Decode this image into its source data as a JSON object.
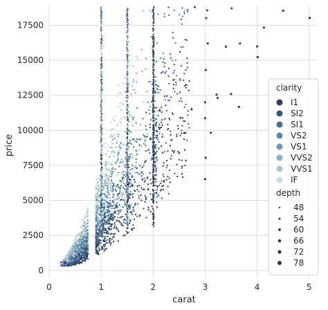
{
  "chart_data": {
    "type": "scatter",
    "title": "",
    "xlabel": "carat",
    "ylabel": "price",
    "xlim": [
      0,
      5.15
    ],
    "ylim": [
      -500,
      18900
    ],
    "x_ticks": [
      0,
      1,
      2,
      3,
      4,
      5
    ],
    "y_ticks": [
      0,
      2500,
      5000,
      7500,
      10000,
      12500,
      15000,
      17500
    ],
    "grid": true,
    "legend_placement": "right",
    "hue": {
      "title": "clarity",
      "categories": [
        "I1",
        "SI2",
        "SI1",
        "VS2",
        "VS1",
        "VVS2",
        "VVS1",
        "IF"
      ],
      "colors": [
        "#2c3d5e",
        "#3a557c",
        "#4a6b92",
        "#5a82a4",
        "#6e9ab4",
        "#88b1c2",
        "#a7c6d0",
        "#c7dde2"
      ]
    },
    "size": {
      "title": "depth",
      "values": [
        48,
        54,
        60,
        66,
        72,
        78
      ]
    },
    "outliers": [
      {
        "x": 4.5,
        "y": 18531,
        "clarity": "I1"
      },
      {
        "x": 5.01,
        "y": 18018,
        "clarity": "I1"
      },
      {
        "x": 4.13,
        "y": 17329,
        "clarity": "I1"
      },
      {
        "x": 4.01,
        "y": 15223,
        "clarity": "I1"
      },
      {
        "x": 4.01,
        "y": 15223,
        "clarity": "I1"
      },
      {
        "x": 4.0,
        "y": 15984,
        "clarity": "I1"
      },
      {
        "x": 3.67,
        "y": 16193,
        "clarity": "I1"
      },
      {
        "x": 3.51,
        "y": 18701,
        "clarity": "SI2"
      },
      {
        "x": 3.4,
        "y": 15964,
        "clarity": "I1"
      },
      {
        "x": 3.65,
        "y": 11668,
        "clarity": "I1"
      },
      {
        "x": 3.5,
        "y": 12587,
        "clarity": "I1"
      },
      {
        "x": 3.22,
        "y": 12545,
        "clarity": "I1"
      },
      {
        "x": 3.24,
        "y": 12300,
        "clarity": "I1"
      },
      {
        "x": 3.11,
        "y": 9823,
        "clarity": "I1"
      },
      {
        "x": 3.01,
        "y": 8040,
        "clarity": "I1"
      },
      {
        "x": 3.0,
        "y": 6512,
        "clarity": "I1"
      },
      {
        "x": 3.0,
        "y": 10863,
        "clarity": "I1"
      },
      {
        "x": 3.02,
        "y": 18000,
        "clarity": "SI2"
      },
      {
        "x": 3.04,
        "y": 18559,
        "clarity": "SI2"
      },
      {
        "x": 3.05,
        "y": 16200,
        "clarity": "I1"
      },
      {
        "x": 3.01,
        "y": 14300,
        "clarity": "I1"
      },
      {
        "x": 3.0,
        "y": 12000,
        "clarity": "I1"
      },
      {
        "x": 2.8,
        "y": 18788,
        "clarity": "SI2"
      },
      {
        "x": 2.74,
        "y": 11500,
        "clarity": "I1"
      },
      {
        "x": 2.6,
        "y": 9800,
        "clarity": "I1"
      }
    ],
    "bulk_density": [
      {
        "x_range": [
          0.2,
          0.5
        ],
        "price_range": [
          326,
          2500
        ],
        "clarity_mix": "all"
      },
      {
        "x_range": [
          0.5,
          1.0
        ],
        "price_range": [
          1000,
          7500
        ],
        "clarity_mix": "all"
      },
      {
        "x_range": [
          1.0,
          1.5
        ],
        "price_range": [
          2000,
          18800
        ],
        "clarity_mix": "all"
      },
      {
        "x_range": [
          1.5,
          2.0
        ],
        "price_range": [
          4000,
          18800
        ],
        "clarity_mix": "all"
      },
      {
        "x_range": [
          2.0,
          2.5
        ],
        "price_range": [
          6000,
          18800
        ],
        "clarity_mix": "I1-VS2"
      }
    ]
  }
}
